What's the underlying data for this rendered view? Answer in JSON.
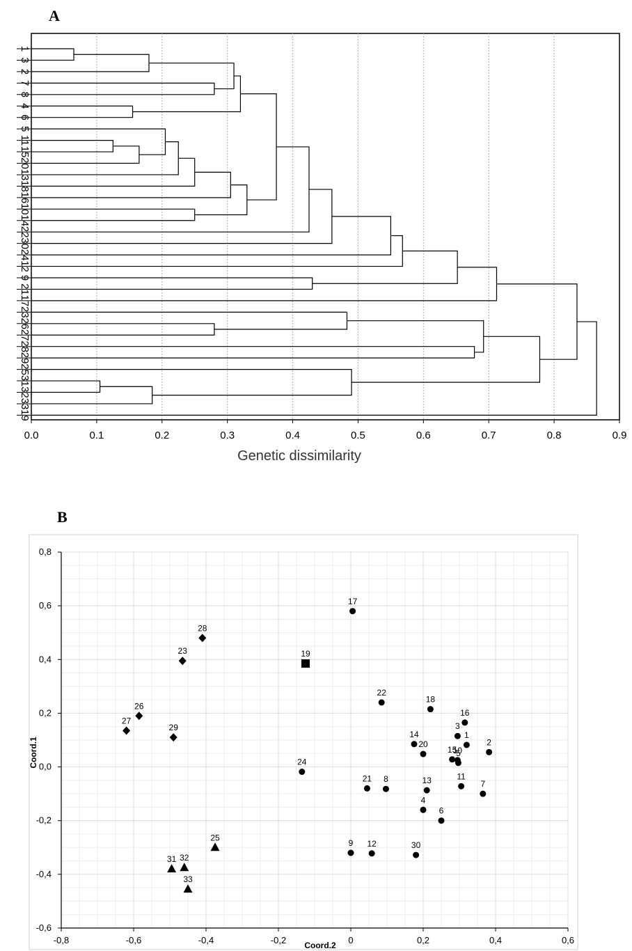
{
  "chart_data": [
    {
      "type": "dendrogram",
      "panel": "A",
      "xlabel": "Genetic dissimilarity",
      "xlim": [
        0.0,
        0.9
      ],
      "xticks": [
        "0.0",
        "0.1",
        "0.2",
        "0.3",
        "0.4",
        "0.5",
        "0.6",
        "0.7",
        "0.8",
        "0.9"
      ],
      "grid": "vertical dotted",
      "leaves": [
        "1",
        "3",
        "2",
        "7",
        "8",
        "4",
        "6",
        "5",
        "11",
        "15",
        "20",
        "13",
        "18",
        "16",
        "10",
        "14",
        "22",
        "30",
        "24",
        "12",
        "9",
        "21",
        "17",
        "23",
        "26",
        "27",
        "28",
        "29",
        "25",
        "31",
        "32",
        "33",
        "19"
      ],
      "merges": [
        {
          "a": "1",
          "b": "3",
          "id": "c1",
          "h": 0.065
        },
        {
          "a": "c1",
          "b": "2",
          "id": "c2",
          "h": 0.18
        },
        {
          "a": "7",
          "b": "8",
          "id": "c3",
          "h": 0.28
        },
        {
          "a": "c2",
          "b": "c3",
          "id": "c4",
          "h": 0.31
        },
        {
          "a": "4",
          "b": "6",
          "id": "c5",
          "h": 0.155
        },
        {
          "a": "c4",
          "b": "c5",
          "id": "c6",
          "h": 0.32
        },
        {
          "a": "11",
          "b": "15",
          "id": "c7",
          "h": 0.125
        },
        {
          "a": "c7",
          "b": "20",
          "id": "c8",
          "h": 0.165
        },
        {
          "a": "5",
          "b": "c8",
          "id": "c9",
          "h": 0.205
        },
        {
          "a": "c9",
          "b": "13",
          "id": "c10",
          "h": 0.225
        },
        {
          "a": "c10",
          "b": "18",
          "id": "c11",
          "h": 0.25
        },
        {
          "a": "c11",
          "b": "16",
          "id": "c12",
          "h": 0.305
        },
        {
          "a": "10",
          "b": "14",
          "id": "c13",
          "h": 0.25
        },
        {
          "a": "c12",
          "b": "c13",
          "id": "c14",
          "h": 0.33
        },
        {
          "a": "c6",
          "b": "c14",
          "id": "c15",
          "h": 0.375
        },
        {
          "a": "c15",
          "b": "22",
          "id": "c16",
          "h": 0.425
        },
        {
          "a": "c16",
          "b": "30",
          "id": "c17",
          "h": 0.46
        },
        {
          "a": "c17",
          "b": "24",
          "id": "c18",
          "h": 0.55
        },
        {
          "a": "c18",
          "b": "12",
          "id": "c19",
          "h": 0.568
        },
        {
          "a": "9",
          "b": "21",
          "id": "c20",
          "h": 0.43
        },
        {
          "a": "c19",
          "b": "c20",
          "id": "c21",
          "h": 0.652
        },
        {
          "a": "c21",
          "b": "17",
          "id": "c22",
          "h": 0.712
        },
        {
          "a": "26",
          "b": "27",
          "id": "c23",
          "h": 0.28
        },
        {
          "a": "23",
          "b": "c23",
          "id": "c24",
          "h": 0.483
        },
        {
          "a": "28",
          "b": "29",
          "id": "c25",
          "h": 0.678
        },
        {
          "a": "c24",
          "b": "c25",
          "id": "c26",
          "h": 0.692
        },
        {
          "a": "31",
          "b": "32",
          "id": "c27",
          "h": 0.105
        },
        {
          "a": "c27",
          "b": "33",
          "id": "c28",
          "h": 0.185
        },
        {
          "a": "25",
          "b": "c28",
          "id": "c29",
          "h": 0.49
        },
        {
          "a": "c26",
          "b": "c29",
          "id": "c30",
          "h": 0.778
        },
        {
          "a": "c22",
          "b": "c30",
          "id": "c31",
          "h": 0.835
        },
        {
          "a": "c31",
          "b": "19",
          "id": "c32",
          "h": 0.865
        }
      ]
    },
    {
      "type": "scatter",
      "panel": "B",
      "xlabel": "Coord.2",
      "ylabel": "Coord.1",
      "xlim": [
        -0.8,
        0.6
      ],
      "ylim": [
        -0.6,
        0.8
      ],
      "xticks": [
        "-0,8",
        "-0,6",
        "-0,4",
        "-0,2",
        "0",
        "0,2",
        "0,4",
        "0,6"
      ],
      "yticks": [
        "-0,6",
        "-0,4",
        "-0,2",
        "0,0",
        "0,2",
        "0,4",
        "0,6",
        "0,8"
      ],
      "grid": "on",
      "points": [
        {
          "label": "17",
          "x": 0.005,
          "y": 0.58,
          "marker": "circle"
        },
        {
          "label": "28",
          "x": -0.41,
          "y": 0.48,
          "marker": "diamond"
        },
        {
          "label": "23",
          "x": -0.465,
          "y": 0.395,
          "marker": "diamond"
        },
        {
          "label": "19",
          "x": -0.125,
          "y": 0.385,
          "marker": "square"
        },
        {
          "label": "22",
          "x": 0.085,
          "y": 0.24,
          "marker": "circle"
        },
        {
          "label": "18",
          "x": 0.22,
          "y": 0.215,
          "marker": "circle"
        },
        {
          "label": "26",
          "x": -0.585,
          "y": 0.19,
          "marker": "diamond"
        },
        {
          "label": "16",
          "x": 0.315,
          "y": 0.165,
          "marker": "circle"
        },
        {
          "label": "27",
          "x": -0.62,
          "y": 0.135,
          "marker": "diamond"
        },
        {
          "label": "3",
          "x": 0.295,
          "y": 0.115,
          "marker": "circle"
        },
        {
          "label": "29",
          "x": -0.49,
          "y": 0.11,
          "marker": "diamond"
        },
        {
          "label": "14",
          "x": 0.175,
          "y": 0.085,
          "marker": "circle"
        },
        {
          "label": "1",
          "x": 0.32,
          "y": 0.082,
          "marker": "circle"
        },
        {
          "label": "2",
          "x": 0.382,
          "y": 0.055,
          "marker": "circle"
        },
        {
          "label": "20",
          "x": 0.2,
          "y": 0.048,
          "marker": "circle"
        },
        {
          "label": "15",
          "x": 0.28,
          "y": 0.028,
          "marker": "circle"
        },
        {
          "label": "10",
          "x": 0.295,
          "y": 0.025,
          "marker": "circle"
        },
        {
          "label": "5",
          "x": 0.297,
          "y": 0.015,
          "marker": "circle"
        },
        {
          "label": "24",
          "x": -0.135,
          "y": -0.018,
          "marker": "circle"
        },
        {
          "label": "11",
          "x": 0.305,
          "y": -0.072,
          "marker": "circle"
        },
        {
          "label": "21",
          "x": 0.045,
          "y": -0.08,
          "marker": "circle"
        },
        {
          "label": "8",
          "x": 0.097,
          "y": -0.082,
          "marker": "circle"
        },
        {
          "label": "13",
          "x": 0.21,
          "y": -0.087,
          "marker": "circle"
        },
        {
          "label": "7",
          "x": 0.365,
          "y": -0.1,
          "marker": "circle"
        },
        {
          "label": "4",
          "x": 0.2,
          "y": -0.16,
          "marker": "circle"
        },
        {
          "label": "6",
          "x": 0.25,
          "y": -0.2,
          "marker": "circle"
        },
        {
          "label": "25",
          "x": -0.375,
          "y": -0.3,
          "marker": "triangle"
        },
        {
          "label": "9",
          "x": 0.0,
          "y": -0.32,
          "marker": "circle"
        },
        {
          "label": "12",
          "x": 0.058,
          "y": -0.322,
          "marker": "circle"
        },
        {
          "label": "30",
          "x": 0.18,
          "y": -0.328,
          "marker": "circle"
        },
        {
          "label": "31",
          "x": -0.495,
          "y": -0.38,
          "marker": "triangle"
        },
        {
          "label": "32",
          "x": -0.46,
          "y": -0.375,
          "marker": "triangle"
        },
        {
          "label": "33",
          "x": -0.45,
          "y": -0.455,
          "marker": "triangle"
        }
      ]
    }
  ]
}
